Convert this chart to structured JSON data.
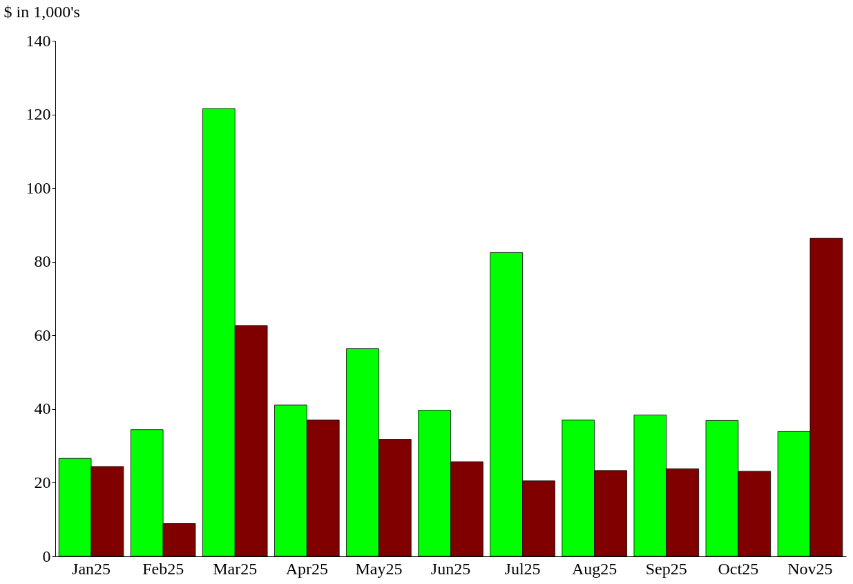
{
  "chart_data": {
    "type": "bar",
    "ylabel": "$ in 1,000's",
    "categories": [
      "Jan25",
      "Feb25",
      "Mar25",
      "Apr25",
      "May25",
      "Jun25",
      "Jul25",
      "Aug25",
      "Sep25",
      "Oct25",
      "Nov25"
    ],
    "series": [
      {
        "color": "#00ff00",
        "values": [
          26.6,
          34.4,
          121.6,
          41.1,
          56.4,
          39.7,
          82.5,
          37.0,
          38.4,
          36.9,
          33.9
        ]
      },
      {
        "color": "#800000",
        "values": [
          24.4,
          8.9,
          62.7,
          37.0,
          31.8,
          25.7,
          20.5,
          23.3,
          23.8,
          23.1,
          86.4
        ]
      }
    ],
    "ylim": [
      0,
      140
    ],
    "yticks": [
      0,
      20,
      40,
      60,
      80,
      100,
      120,
      140
    ],
    "grid": false,
    "legend": false
  }
}
